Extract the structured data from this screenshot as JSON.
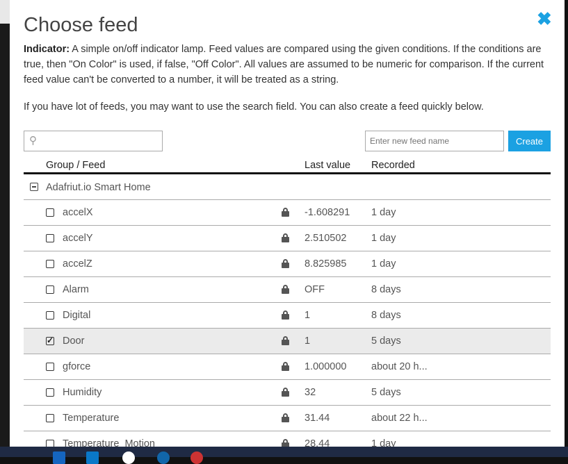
{
  "modal": {
    "title": "Choose feed",
    "close_icon": "close-icon",
    "description_bold": "Indicator:",
    "description": " A simple on/off indicator lamp. Feed values are compared using the given conditions. If the conditions are true, then \"On Color\" is used, if false, \"Off Color\". All values are assumed to be numeric for comparison. If the current feed value can't be converted to a number, it will be treated as a string.",
    "hint": "If you have lot of feeds, you may want to use the search field. You can also create a feed quickly below.",
    "search_value": "",
    "new_feed_placeholder": "Enter new feed name",
    "create_label": "Create"
  },
  "table": {
    "headers": {
      "feed": "Group / Feed",
      "value": "Last value",
      "recorded": "Recorded"
    },
    "group": "Adafriut.io Smart Home",
    "rows": [
      {
        "name": "accelX",
        "value": "-1.608291",
        "recorded": "1 day",
        "checked": false
      },
      {
        "name": "accelY",
        "value": "2.510502",
        "recorded": "1 day",
        "checked": false
      },
      {
        "name": "accelZ",
        "value": "8.825985",
        "recorded": "1 day",
        "checked": false
      },
      {
        "name": "Alarm",
        "value": "OFF",
        "recorded": "8 days",
        "checked": false
      },
      {
        "name": "Digital",
        "value": "1",
        "recorded": "8 days",
        "checked": false
      },
      {
        "name": "Door",
        "value": "1",
        "recorded": "5 days",
        "checked": true
      },
      {
        "name": "gforce",
        "value": "1.000000",
        "recorded": "about 20 h...",
        "checked": false
      },
      {
        "name": "Humidity",
        "value": "32",
        "recorded": "5 days",
        "checked": false
      },
      {
        "name": "Temperature",
        "value": "31.44",
        "recorded": "about 22 h...",
        "checked": false
      },
      {
        "name": "Temperature_Motion",
        "value": "28.44",
        "recorded": "1 day",
        "checked": false
      }
    ]
  },
  "colors": {
    "accent": "#1ba1e2",
    "selected_row": "#ebebeb"
  }
}
